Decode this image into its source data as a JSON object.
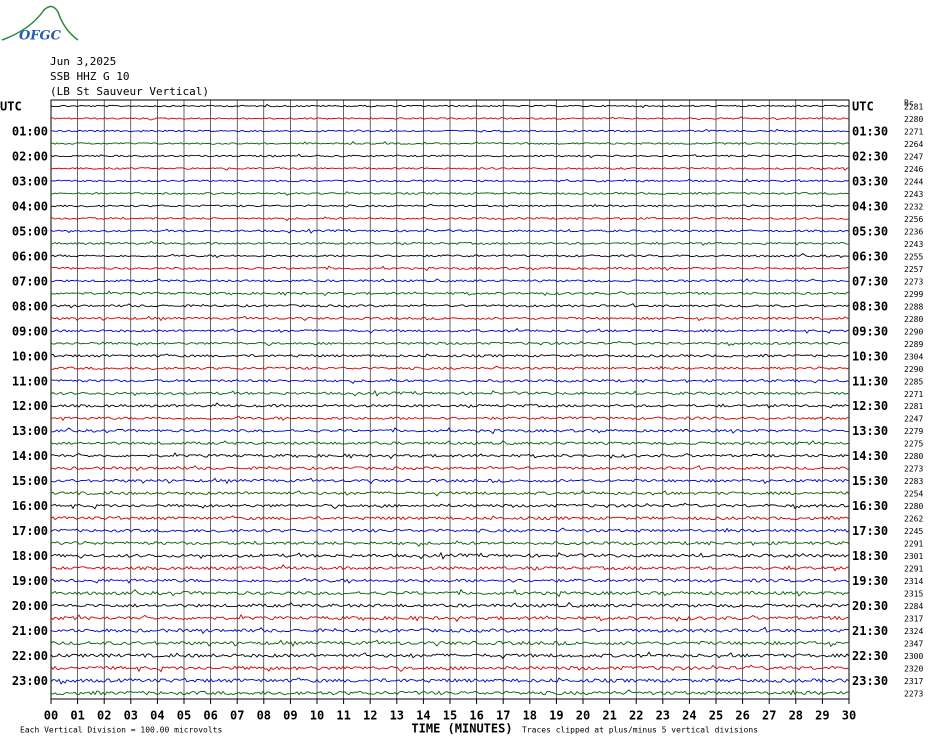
{
  "chart_data": {
    "type": "helicorder",
    "logo": "OFGC",
    "title_lines": [
      "Jun 3,2025",
      "SSB HHZ G 10",
      "(LB St Sauveur Vertical)"
    ],
    "left_labels": [
      "UTC",
      "01:00",
      "02:00",
      "03:00",
      "04:00",
      "05:00",
      "06:00",
      "07:00",
      "08:00",
      "09:00",
      "10:00",
      "11:00",
      "12:00",
      "13:00",
      "14:00",
      "15:00",
      "16:00",
      "17:00",
      "18:00",
      "19:00",
      "20:00",
      "21:00",
      "22:00",
      "23:00"
    ],
    "right_labels": [
      "UTC",
      "01:30",
      "02:30",
      "03:30",
      "04:30",
      "05:30",
      "06:30",
      "07:30",
      "08:30",
      "09:30",
      "10:30",
      "11:30",
      "12:30",
      "13:30",
      "14:30",
      "15:30",
      "16:30",
      "17:30",
      "18:30",
      "19:30",
      "20:30",
      "21:30",
      "22:30",
      "23:30"
    ],
    "count_header": "Bc",
    "counts": [
      2281,
      2280,
      2271,
      2264,
      2247,
      2246,
      2244,
      2243,
      2232,
      2256,
      2236,
      2243,
      2255,
      2257,
      2273,
      2299,
      2288,
      2280,
      2290,
      2289,
      2304,
      2290,
      2285,
      2271,
      2281,
      2247,
      2279,
      2275,
      2280,
      2273,
      2283,
      2254,
      2280,
      2262,
      2245,
      2291,
      2301,
      2291,
      2314,
      2315,
      2284,
      2317,
      2324,
      2347,
      2300,
      2320,
      2317,
      2273
    ],
    "trace_colors": [
      "#000000",
      "#d00000",
      "#0000c8",
      "#006400"
    ],
    "xlim": [
      0,
      30
    ],
    "xticks": [
      {
        "value": 0,
        "label": "00"
      },
      {
        "value": 1,
        "label": "01"
      },
      {
        "value": 2,
        "label": "02"
      },
      {
        "value": 3,
        "label": "03"
      },
      {
        "value": 4,
        "label": "04"
      },
      {
        "value": 5,
        "label": "05"
      },
      {
        "value": 6,
        "label": "06"
      },
      {
        "value": 7,
        "label": "07"
      },
      {
        "value": 8,
        "label": "08"
      },
      {
        "value": 9,
        "label": "09"
      },
      10,
      11,
      12,
      13,
      14,
      15,
      16,
      17,
      18,
      19,
      20,
      21,
      22,
      23,
      24,
      25,
      26,
      27,
      28,
      29,
      30
    ],
    "xlabel": "TIME (MINUTES)",
    "scale_note": "Each Vertical Division =  100.00 microvolts",
    "clip_note": "Traces clipped at plus/minus 5 vertical divisions"
  }
}
